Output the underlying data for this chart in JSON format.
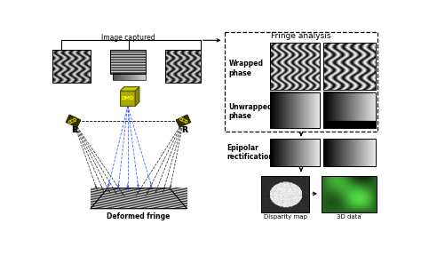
{
  "bg_color": "#ffffff",
  "title_fontsize": 6.5,
  "label_fontsize": 5.5,
  "fig_width": 4.74,
  "fig_height": 2.88,
  "dpi": 100,
  "left_panel": {
    "caption_image_captured": "Image captured",
    "caption_deformed_fringe": "Deformed fringe",
    "label_L": "L",
    "label_R": "R",
    "label_DMD": "DMD"
  },
  "right_panel": {
    "fringe_analysis_title": "Fringe analysis",
    "wrapped_phase_label": "Wrapped\nphase",
    "unwrapped_phase_label": "Unwrapped\nphase",
    "epipolar_label": "Epipolar\nrectification",
    "disparity_label": "Disparity map",
    "data3d_label": "3D data"
  }
}
